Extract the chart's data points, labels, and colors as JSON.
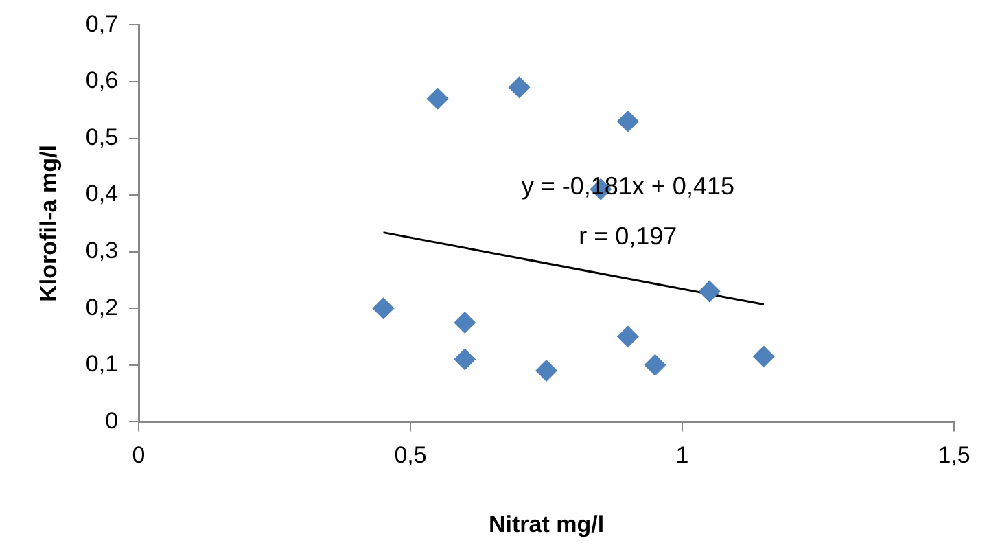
{
  "chart_data": {
    "type": "scatter",
    "xlabel": "Nitrat mg/l",
    "ylabel": "Klorofil-a mg/l",
    "series": [
      {
        "type": "scatter",
        "color": "#4f81bd",
        "marker": "diamond",
        "x": [
          0.45,
          0.55,
          0.7,
          0.6,
          0.6,
          0.75,
          0.9,
          0.85,
          1.05,
          0.9,
          0.95,
          1.15
        ],
        "values": [
          0.2,
          0.57,
          0.59,
          0.175,
          0.11,
          0.09,
          0.53,
          0.41,
          0.23,
          0.15,
          0.1,
          0.115
        ]
      },
      {
        "type": "line",
        "color": "#000000",
        "marker": "none",
        "line_style": "solid",
        "x": [
          0.45,
          1.15
        ],
        "values": [
          0.334,
          0.207
        ]
      }
    ],
    "xlim": [
      0,
      1.5
    ],
    "xticks": [
      0,
      {
        "value": 0.5,
        "label": "0,5"
      },
      1,
      {
        "value": 1.5,
        "label": "1,5"
      }
    ],
    "ylim": [
      0,
      0.7
    ],
    "yticks": [
      0,
      {
        "value": 0.1,
        "label": "0,1"
      },
      {
        "value": 0.2,
        "label": "0,2"
      },
      {
        "value": 0.3,
        "label": "0,3"
      },
      {
        "value": 0.4,
        "label": "0,4"
      },
      {
        "value": 0.5,
        "label": "0,5"
      },
      {
        "value": 0.6,
        "label": "0,6"
      },
      {
        "value": 0.7,
        "label": "0,7"
      }
    ],
    "grid": false,
    "legend": false,
    "annotations": [
      "y = -0,181x + 0,415",
      "r = 0,197"
    ]
  }
}
